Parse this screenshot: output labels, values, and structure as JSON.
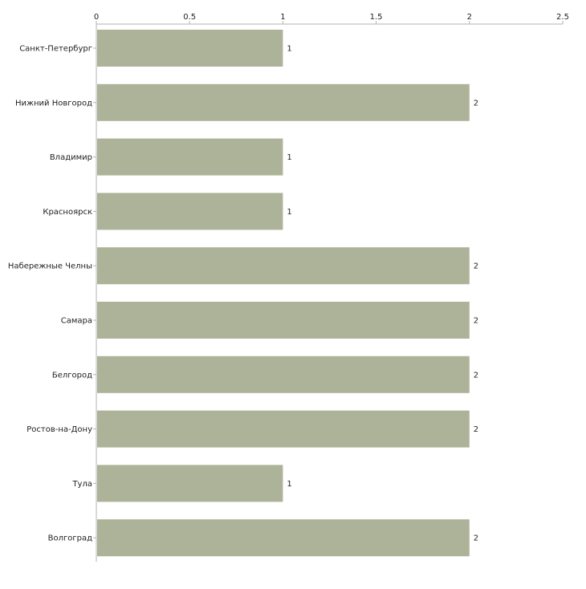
{
  "chart_data": {
    "type": "bar",
    "orientation": "horizontal",
    "title": "",
    "xlabel": "",
    "ylabel": "",
    "xlim": [
      0,
      2.5
    ],
    "ticks": [
      0,
      0.5,
      1,
      1.5,
      2,
      2.5
    ],
    "tick_labels": [
      "0",
      "0.5",
      "1",
      "1.5",
      "2",
      "2.5"
    ],
    "grid": false,
    "categories": [
      "Санкт-Петербург",
      "Нижний Новгород",
      "Владимир",
      "Красноярск",
      "Набережные Челны",
      "Самара",
      "Белгород",
      "Ростов-на-Дону",
      "Тула",
      "Волгоград"
    ],
    "values": [
      1,
      2,
      1,
      1,
      2,
      2,
      2,
      2,
      1,
      2
    ],
    "value_labels": [
      "1",
      "2",
      "1",
      "1",
      "2",
      "2",
      "2",
      "2",
      "1",
      "2"
    ],
    "colors": {
      "bar": "#adb398",
      "axis": "#b3b3b3",
      "text": "#222222"
    }
  }
}
